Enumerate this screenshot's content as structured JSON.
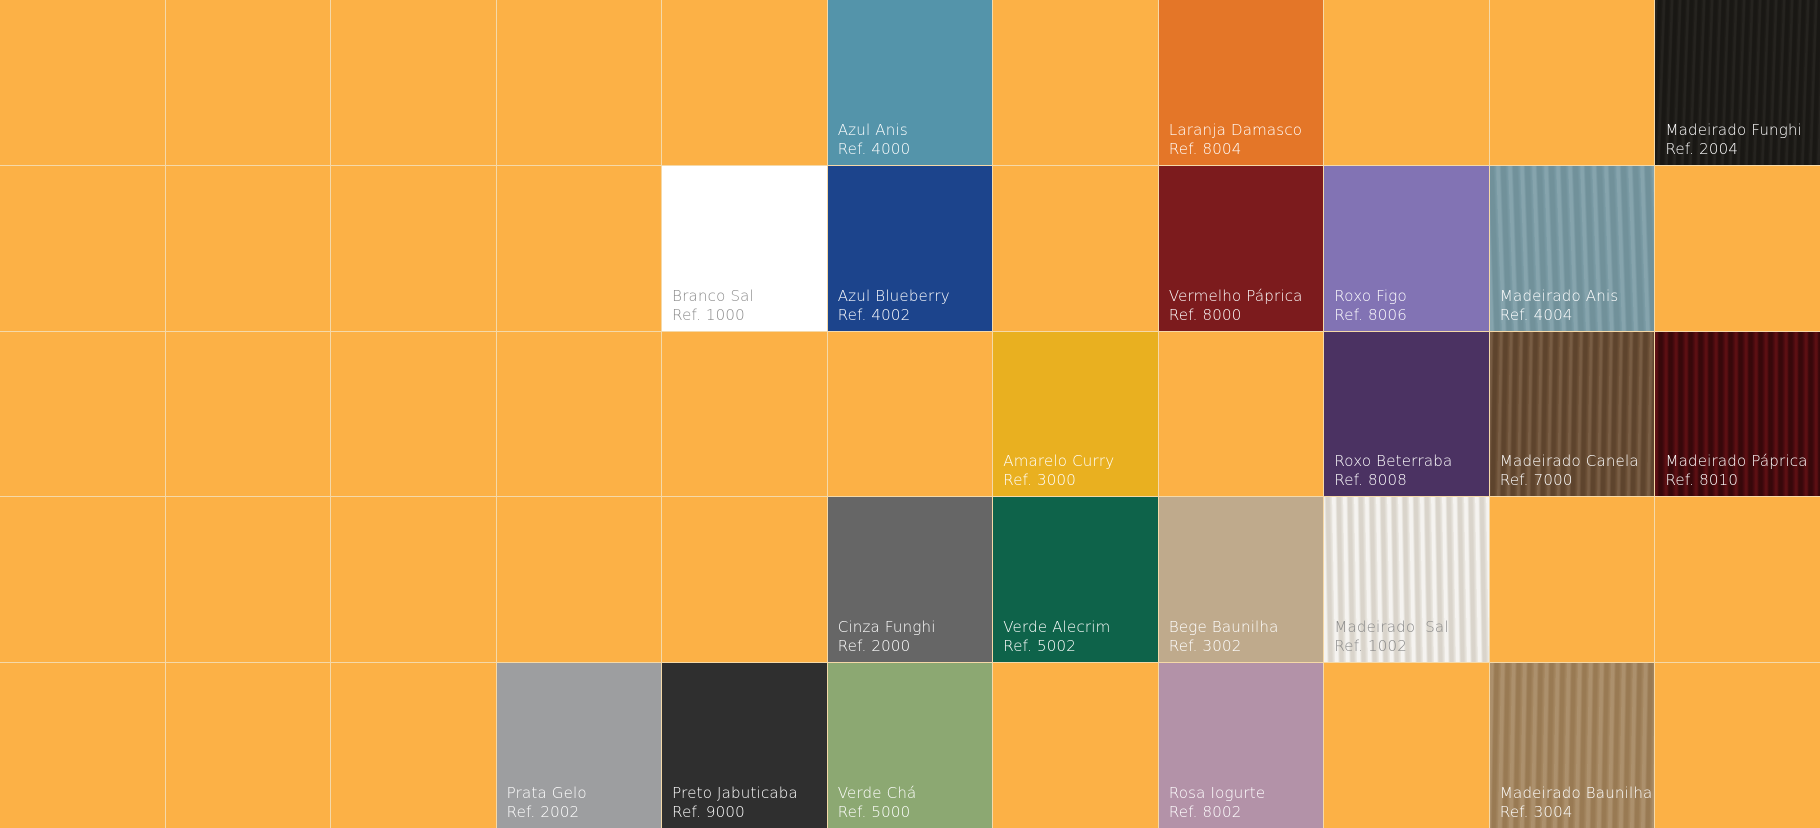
{
  "grid": {
    "columns": 11,
    "rows": 5,
    "filler_color": "#fcb146",
    "swatches": [
      {
        "row": 1,
        "col": 6,
        "name": "Azul Anis",
        "ref": "Ref. 4000",
        "color": "#5494aa",
        "text": "light"
      },
      {
        "row": 1,
        "col": 8,
        "name": "Laranja Damasco",
        "ref": "Ref. 8004",
        "color": "#e47628",
        "text": "light"
      },
      {
        "row": 1,
        "col": 11,
        "name": "Madeirado Funghi",
        "ref": "Ref. 2004",
        "color": "#1c1a16",
        "text": "light",
        "texture": "wood-dark"
      },
      {
        "row": 2,
        "col": 5,
        "name": "Branco Sal",
        "ref": "Ref. 1000",
        "color": "#ffffff",
        "text": "dark"
      },
      {
        "row": 2,
        "col": 6,
        "name": "Azul Blueberry",
        "ref": "Ref. 4002",
        "color": "#1c448c",
        "text": "light"
      },
      {
        "row": 2,
        "col": 8,
        "name": "Vermelho Páprica",
        "ref": "Ref. 8000",
        "color": "#7c1b1d",
        "text": "light"
      },
      {
        "row": 2,
        "col": 9,
        "name": "Roxo Figo",
        "ref": "Ref. 8006",
        "color": "#8273b4",
        "text": "light"
      },
      {
        "row": 2,
        "col": 10,
        "name": "Madeirado Anis",
        "ref": "Ref. 4004",
        "color": "#789aa4",
        "text": "light",
        "texture": "wood-blue"
      },
      {
        "row": 3,
        "col": 7,
        "name": "Amarelo Curry",
        "ref": "Ref. 3000",
        "color": "#e9b020",
        "text": "light"
      },
      {
        "row": 3,
        "col": 9,
        "name": "Roxo Beterraba",
        "ref": "Ref. 8008",
        "color": "#4b3262",
        "text": "light"
      },
      {
        "row": 3,
        "col": 10,
        "name": "Madeirado Canela",
        "ref": "Ref. 7000",
        "color": "#6d4f34",
        "text": "light",
        "texture": "wood-brown"
      },
      {
        "row": 3,
        "col": 11,
        "name": "Madeirado Páprica",
        "ref": "Ref. 8010",
        "color": "#4a0a0e",
        "text": "light",
        "texture": "wood-red"
      },
      {
        "row": 4,
        "col": 6,
        "name": "Cinza Funghi",
        "ref": "Ref. 2000",
        "color": "#666666",
        "text": "light"
      },
      {
        "row": 4,
        "col": 7,
        "name": "Verde Alecrim",
        "ref": "Ref. 5002",
        "color": "#0e634a",
        "text": "light"
      },
      {
        "row": 4,
        "col": 8,
        "name": "Bege Baunilha",
        "ref": "Ref. 3002",
        "color": "#bfaa8c",
        "text": "light"
      },
      {
        "row": 4,
        "col": 9,
        "name": "Madeirado  Sal",
        "ref": "Ref. 1002",
        "color": "#e6e2da",
        "text": "dark",
        "texture": "wood-white"
      },
      {
        "row": 5,
        "col": 4,
        "name": "Prata Gelo",
        "ref": "Ref. 2002",
        "color": "#9d9ea0",
        "text": "light"
      },
      {
        "row": 5,
        "col": 5,
        "name": "Preto Jabuticaba",
        "ref": "Ref. 9000",
        "color": "#2f2f2f",
        "text": "light"
      },
      {
        "row": 5,
        "col": 6,
        "name": "Verde Chá",
        "ref": "Ref. 5000",
        "color": "#8ca872",
        "text": "light"
      },
      {
        "row": 5,
        "col": 8,
        "name": "Rosa Iogurte",
        "ref": "Ref. 8002",
        "color": "#b392a8",
        "text": "light"
      },
      {
        "row": 5,
        "col": 10,
        "name": "Madeirado Baunilha",
        "ref": "Ref. 3004",
        "color": "#a3845c",
        "text": "light",
        "texture": "wood-tan"
      }
    ]
  }
}
